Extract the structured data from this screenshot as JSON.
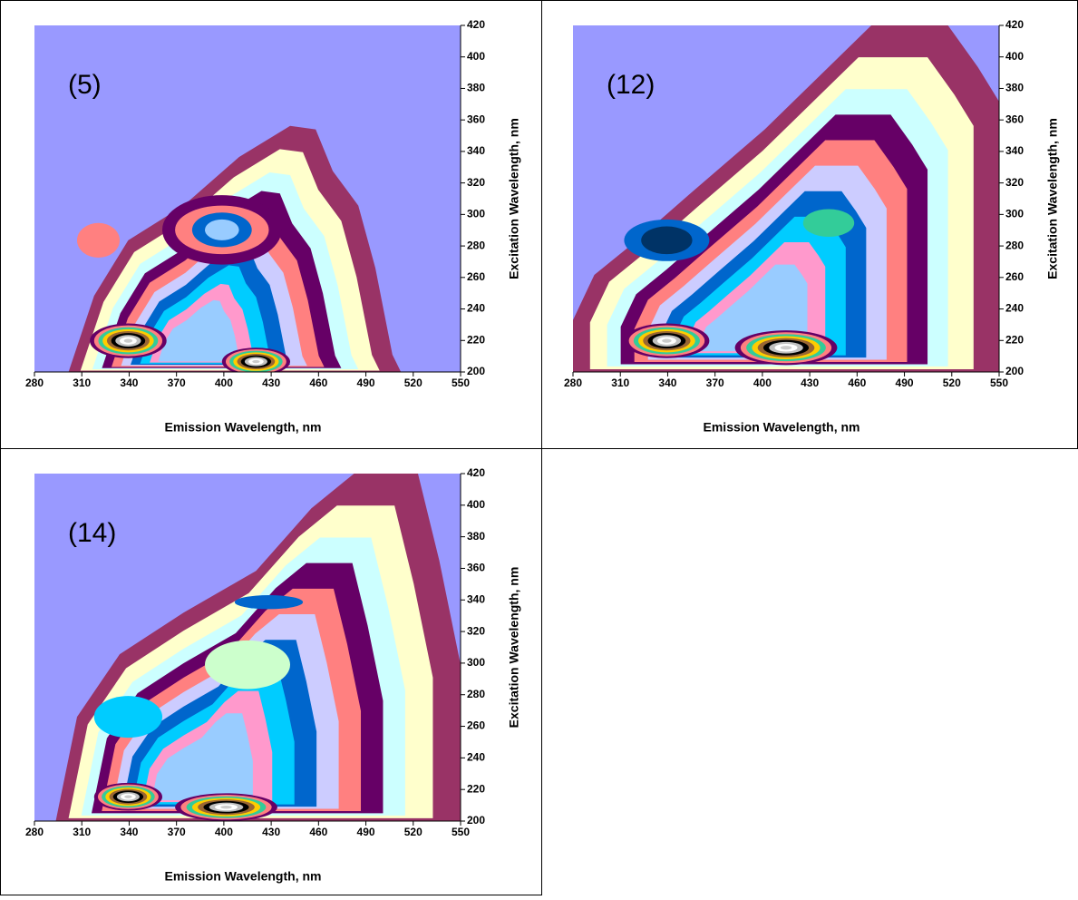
{
  "chart_data": [
    {
      "type": "contour",
      "title": "(5)",
      "x_label": "Emission Wavelength, nm",
      "y_label": "Excitation Wavelength, nm",
      "xlim": [
        280,
        550
      ],
      "xticks": [
        280,
        310,
        340,
        370,
        400,
        430,
        460,
        490,
        520,
        550
      ],
      "ylim": [
        200,
        420
      ],
      "yticks": [
        200,
        220,
        240,
        260,
        280,
        300,
        320,
        340,
        360,
        380,
        400,
        420
      ]
    },
    {
      "type": "contour",
      "title": "(12)",
      "x_label": "Emission Wavelength, nm",
      "y_label": "Excitation Wavelength, nm",
      "xlim": [
        280,
        550
      ],
      "xticks": [
        280,
        310,
        340,
        370,
        400,
        430,
        460,
        490,
        520,
        550
      ],
      "ylim": [
        200,
        420
      ],
      "yticks": [
        200,
        220,
        240,
        260,
        280,
        300,
        320,
        340,
        360,
        380,
        400,
        420
      ]
    },
    {
      "type": "contour",
      "title": "(14)",
      "x_label": "Emission Wavelength, nm",
      "y_label": "Excitation Wavelength, nm",
      "xlim": [
        280,
        550
      ],
      "xticks": [
        280,
        310,
        340,
        370,
        400,
        430,
        460,
        490,
        520,
        550
      ],
      "ylim": [
        200,
        420
      ],
      "yticks": [
        200,
        220,
        240,
        260,
        280,
        300,
        320,
        340,
        360,
        380,
        400,
        420
      ]
    }
  ]
}
